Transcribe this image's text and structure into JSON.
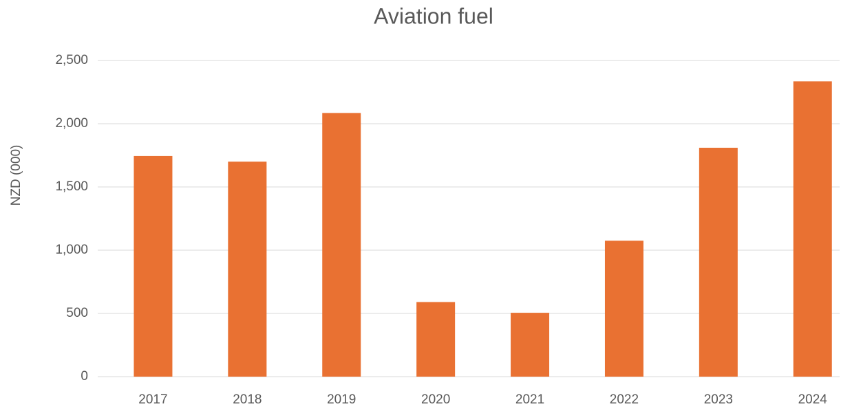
{
  "chart_data": {
    "type": "bar",
    "title": "Aviation fuel",
    "y_label": "NZD (000)",
    "categories": [
      "2017",
      "2018",
      "2019",
      "2020",
      "2021",
      "2022",
      "2023",
      "2024"
    ],
    "values": [
      1745,
      1700,
      2085,
      590,
      505,
      1075,
      1810,
      2335
    ],
    "color": "#e97132",
    "ylim": [
      0,
      2500
    ],
    "yticks": [
      0,
      500,
      {
        "value": 1000,
        "label": "1,000"
      },
      {
        "value": 1500,
        "label": "1,500"
      },
      {
        "value": 2000,
        "label": "2,000"
      },
      {
        "value": 2500,
        "label": "2,500"
      }
    ],
    "grid": true
  }
}
